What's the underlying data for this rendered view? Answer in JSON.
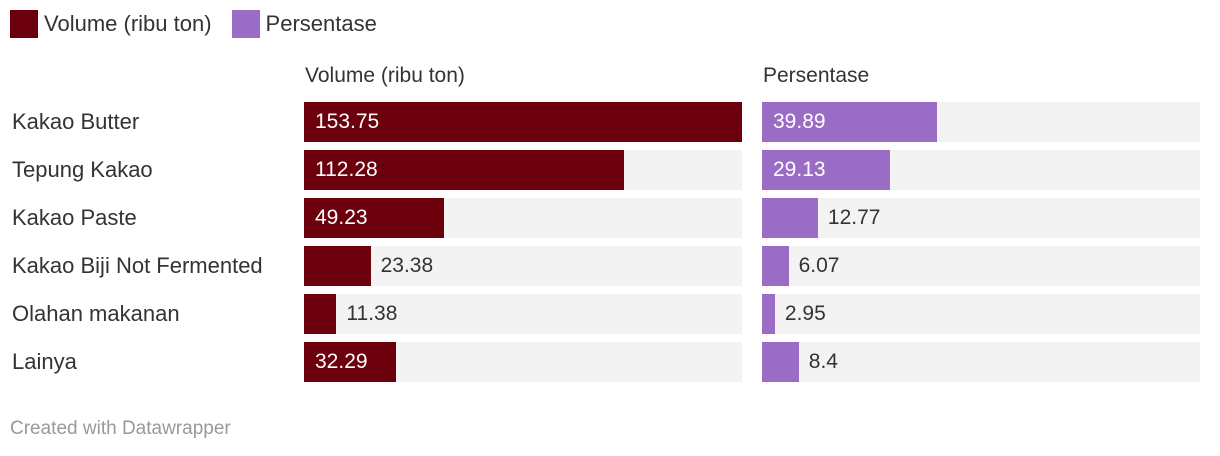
{
  "legend": [
    {
      "label": "Volume (ribu ton)",
      "color": "#6c000d"
    },
    {
      "label": "Persentase",
      "color": "#9a6cc6"
    }
  ],
  "footer": "Created with Datawrapper",
  "chart_data": {
    "type": "bar",
    "orientation": "horizontal",
    "categories": [
      "Kakao Butter",
      "Tepung Kakao",
      "Kakao Paste",
      "Kakao Biji Not Fermented",
      "Olahan makanan",
      "Lainya"
    ],
    "series": [
      {
        "name": "Volume (ribu ton)",
        "color": "#6c000d",
        "values": [
          153.75,
          112.28,
          49.23,
          23.38,
          11.38,
          32.29
        ],
        "labels": [
          "153.75",
          "112.28",
          "49.23",
          "23.38",
          "11.38",
          "32.29"
        ],
        "max": 153.75
      },
      {
        "name": "Persentase",
        "color": "#9a6cc6",
        "values": [
          39.89,
          29.13,
          12.77,
          6.07,
          2.95,
          8.4
        ],
        "labels": [
          "39.89",
          "29.13",
          "12.77",
          "6.07",
          "2.95",
          "8.4"
        ],
        "max": 100
      }
    ],
    "legend_position": "top-left",
    "grid": false
  }
}
